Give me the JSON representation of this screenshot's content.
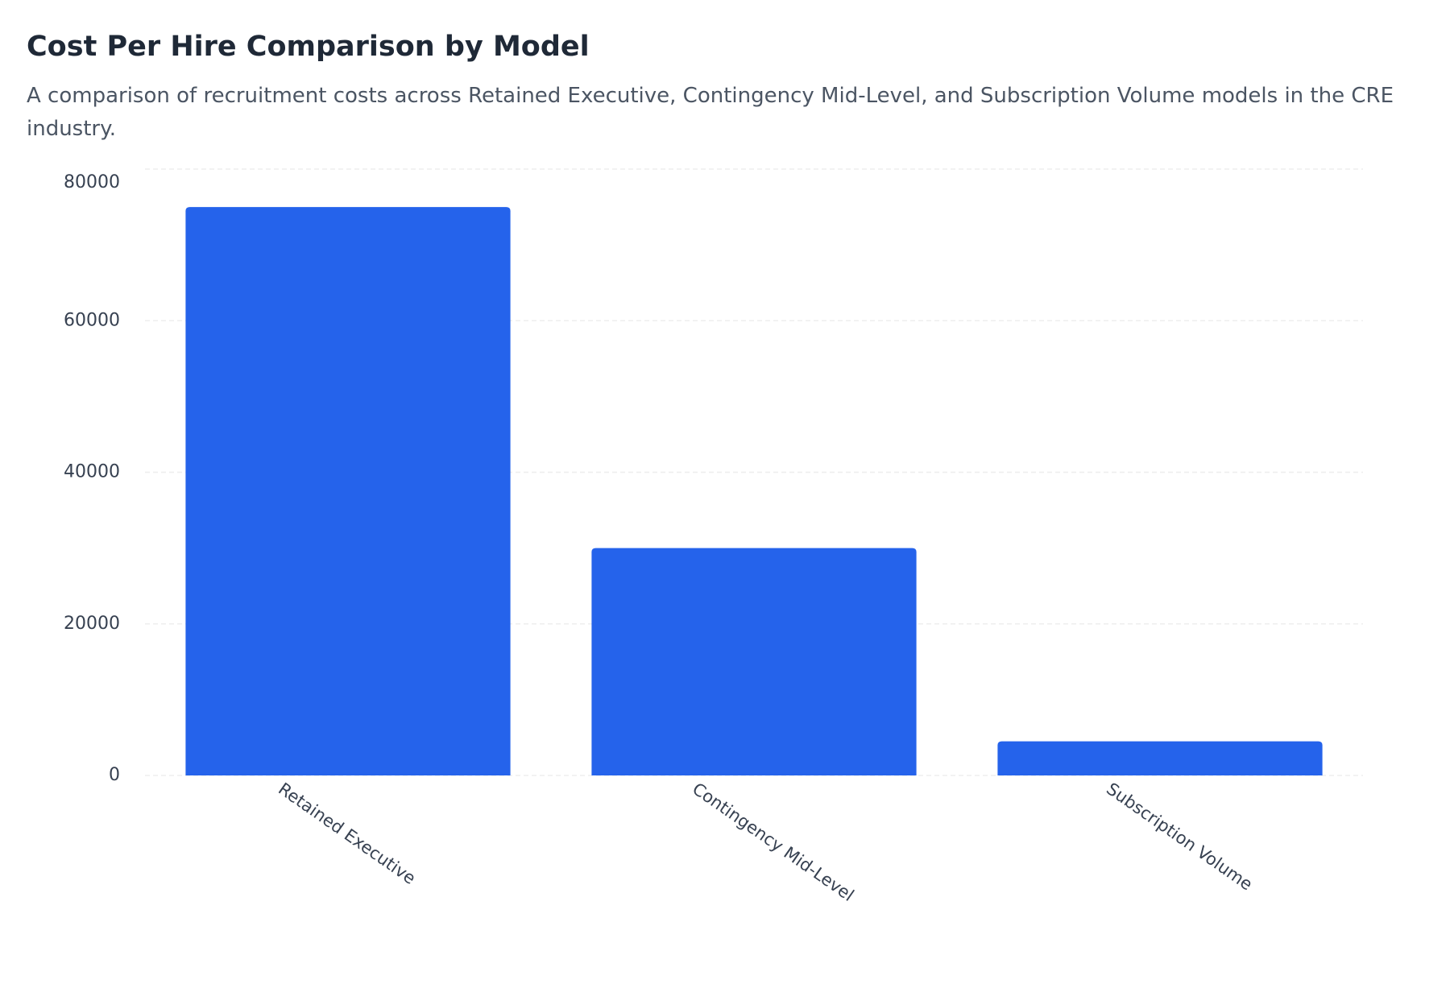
{
  "chart_data": {
    "type": "bar",
    "title": "Cost Per Hire Comparison by Model",
    "subtitle": "A comparison of recruitment costs across Retained Executive, Contingency Mid-Level, and Subscription Volume models in the CRE industry.",
    "categories": [
      "Retained Executive",
      "Contingency Mid-Level",
      "Subscription Volume"
    ],
    "values": [
      75000,
      30000,
      4500
    ],
    "color": "#2563eb",
    "ylim": [
      0,
      80000
    ],
    "yticks": [
      0,
      20000,
      40000,
      60000,
      80000
    ],
    "grid": true
  }
}
